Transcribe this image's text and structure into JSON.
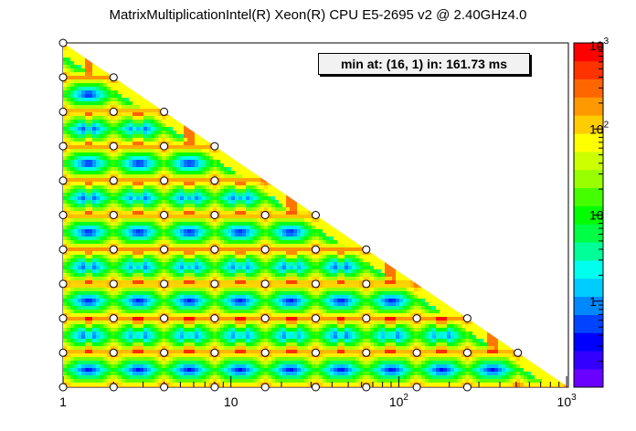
{
  "chart_data": {
    "type": "heatmap",
    "title": "MatrixMultiplicationIntel(R) Xeon(R) CPU E5-2695 v2 @ 2.40GHz4.0",
    "annotation": "min at: (16, 1) in: 161.73 ms",
    "x_scale": "log2",
    "y_scale": "log2",
    "x_range": [
      1,
      1024
    ],
    "y_range": [
      1,
      1024
    ],
    "x_ticks": [
      {
        "value": 1,
        "base": "1",
        "exp": ""
      },
      {
        "value": 10,
        "base": "10",
        "exp": ""
      },
      {
        "value": 100,
        "base": "10",
        "exp": "2"
      },
      {
        "value": 1000,
        "base": "10",
        "exp": "3"
      }
    ],
    "color_scale": "log",
    "color_range": [
      0.1,
      1000
    ],
    "color_ticks": [
      {
        "value": 1000,
        "base": "10",
        "exp": "3"
      },
      {
        "value": 100,
        "base": "10",
        "exp": "2"
      },
      {
        "value": 10,
        "base": "10",
        "exp": ""
      },
      {
        "value": 1,
        "base": "1",
        "exp": ""
      }
    ],
    "sample_rows": [
      {
        "y": 1024,
        "x": [
          1
        ]
      },
      {
        "y": 512,
        "x": [
          1,
          2
        ]
      },
      {
        "y": 256,
        "x": [
          1,
          2,
          4
        ]
      },
      {
        "y": 128,
        "x": [
          1,
          2,
          4,
          8
        ]
      },
      {
        "y": 64,
        "x": [
          1,
          2,
          4,
          8
        ]
      },
      {
        "y": 32,
        "x": [
          1,
          2,
          4,
          8,
          16,
          32
        ]
      },
      {
        "y": 16,
        "x": [
          1,
          2,
          4,
          8,
          16,
          32,
          64
        ]
      },
      {
        "y": 8,
        "x": [
          1,
          2,
          4,
          8,
          16,
          32,
          64
        ]
      },
      {
        "y": 4,
        "x": [
          1,
          2,
          4,
          8,
          16,
          32,
          64,
          128,
          256
        ]
      },
      {
        "y": 2,
        "x": [
          1,
          2,
          4,
          8,
          16,
          32,
          64,
          128,
          256,
          512
        ]
      },
      {
        "y": 1,
        "x": [
          1,
          2,
          4,
          8,
          16,
          32,
          64,
          128,
          256
        ]
      }
    ],
    "grid": false,
    "palette": [
      "#6a00ff",
      "#3300ff",
      "#0000ff",
      "#0044ff",
      "#0088ff",
      "#00ccff",
      "#00ffee",
      "#00ff99",
      "#00ff44",
      "#00ff00",
      "#44ff00",
      "#99ff00",
      "#ccff00",
      "#ffff00",
      "#ffcc00",
      "#ff9900",
      "#ff6600",
      "#ff3300",
      "#ff0000"
    ]
  }
}
